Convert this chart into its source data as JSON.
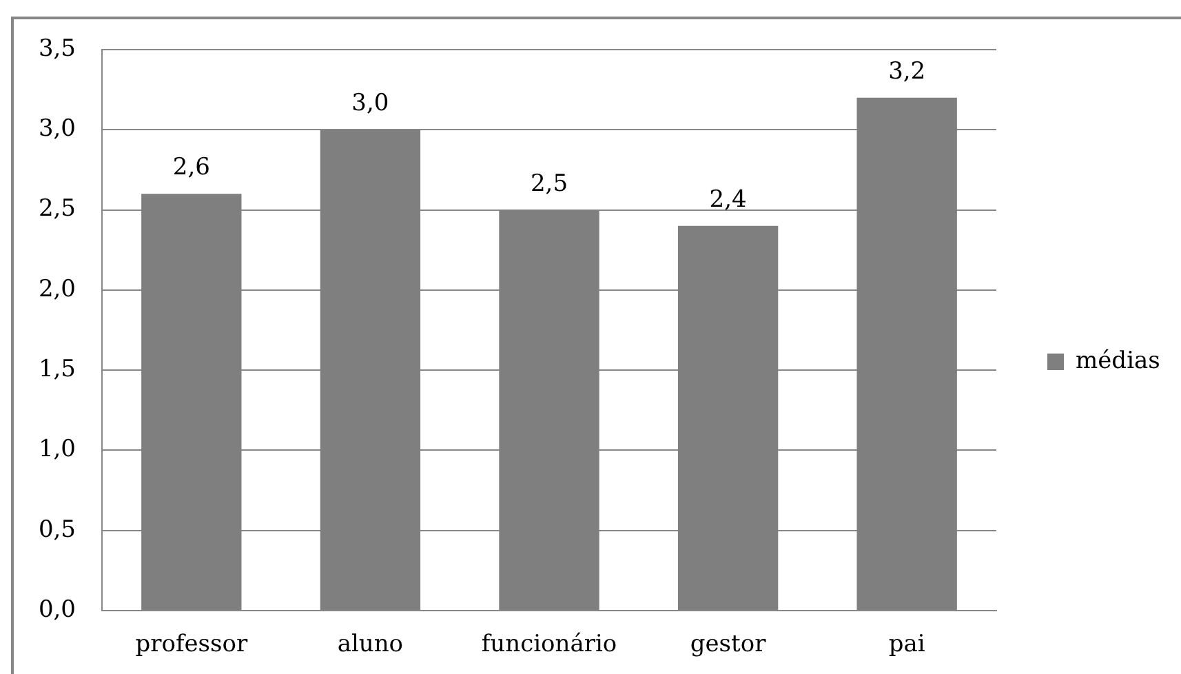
{
  "chart_data": {
    "type": "bar",
    "categories": [
      "professor",
      "aluno",
      "funcionário",
      "gestor",
      "pai"
    ],
    "series": [
      {
        "name": "médias",
        "color": "#7f7f7f",
        "values": [
          2.6,
          3.0,
          2.5,
          2.4,
          3.2
        ],
        "value_labels": [
          "2,6",
          "3,0",
          "2,5",
          "2,4",
          "3,2"
        ]
      }
    ],
    "ylim": [
      0,
      3.5
    ],
    "yticks": [
      {
        "value": 0,
        "label": "0,0"
      },
      {
        "value": 0.5,
        "label": "0,5"
      },
      {
        "value": 1,
        "label": "1,0"
      },
      {
        "value": 1.5,
        "label": "1,5"
      },
      {
        "value": 2,
        "label": "2,0"
      },
      {
        "value": 2.5,
        "label": "2,5"
      },
      {
        "value": 3,
        "label": "3,0"
      },
      {
        "value": 3.5,
        "label": "3,5"
      }
    ],
    "grid": "y",
    "legend": "right"
  }
}
